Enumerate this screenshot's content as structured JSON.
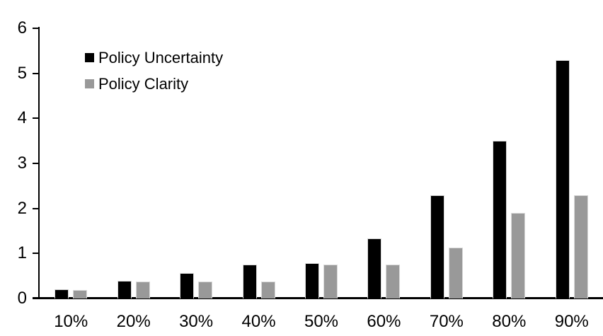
{
  "chart_data": {
    "type": "bar",
    "title": "",
    "xlabel": "",
    "ylabel": "",
    "categories": [
      "10%",
      "20%",
      "30%",
      "40%",
      "50%",
      "60%",
      "70%",
      "80%",
      "90%"
    ],
    "series": [
      {
        "name": "Policy Uncertainty",
        "color": "#000000",
        "values": [
          0.2,
          0.4,
          0.56,
          0.76,
          0.78,
          1.33,
          2.3,
          3.5,
          5.3
        ]
      },
      {
        "name": "Policy Clarity",
        "color": "#999999",
        "values": [
          0.19,
          0.38,
          0.38,
          0.38,
          0.76,
          0.76,
          1.13,
          1.9,
          2.3
        ]
      }
    ],
    "ylim": [
      0,
      6
    ],
    "yticks": [
      "0",
      "1",
      "2",
      "3",
      "4",
      "5",
      "6"
    ],
    "grid": false,
    "legend_position": "upper-left-inside",
    "background": "#ffffff"
  }
}
